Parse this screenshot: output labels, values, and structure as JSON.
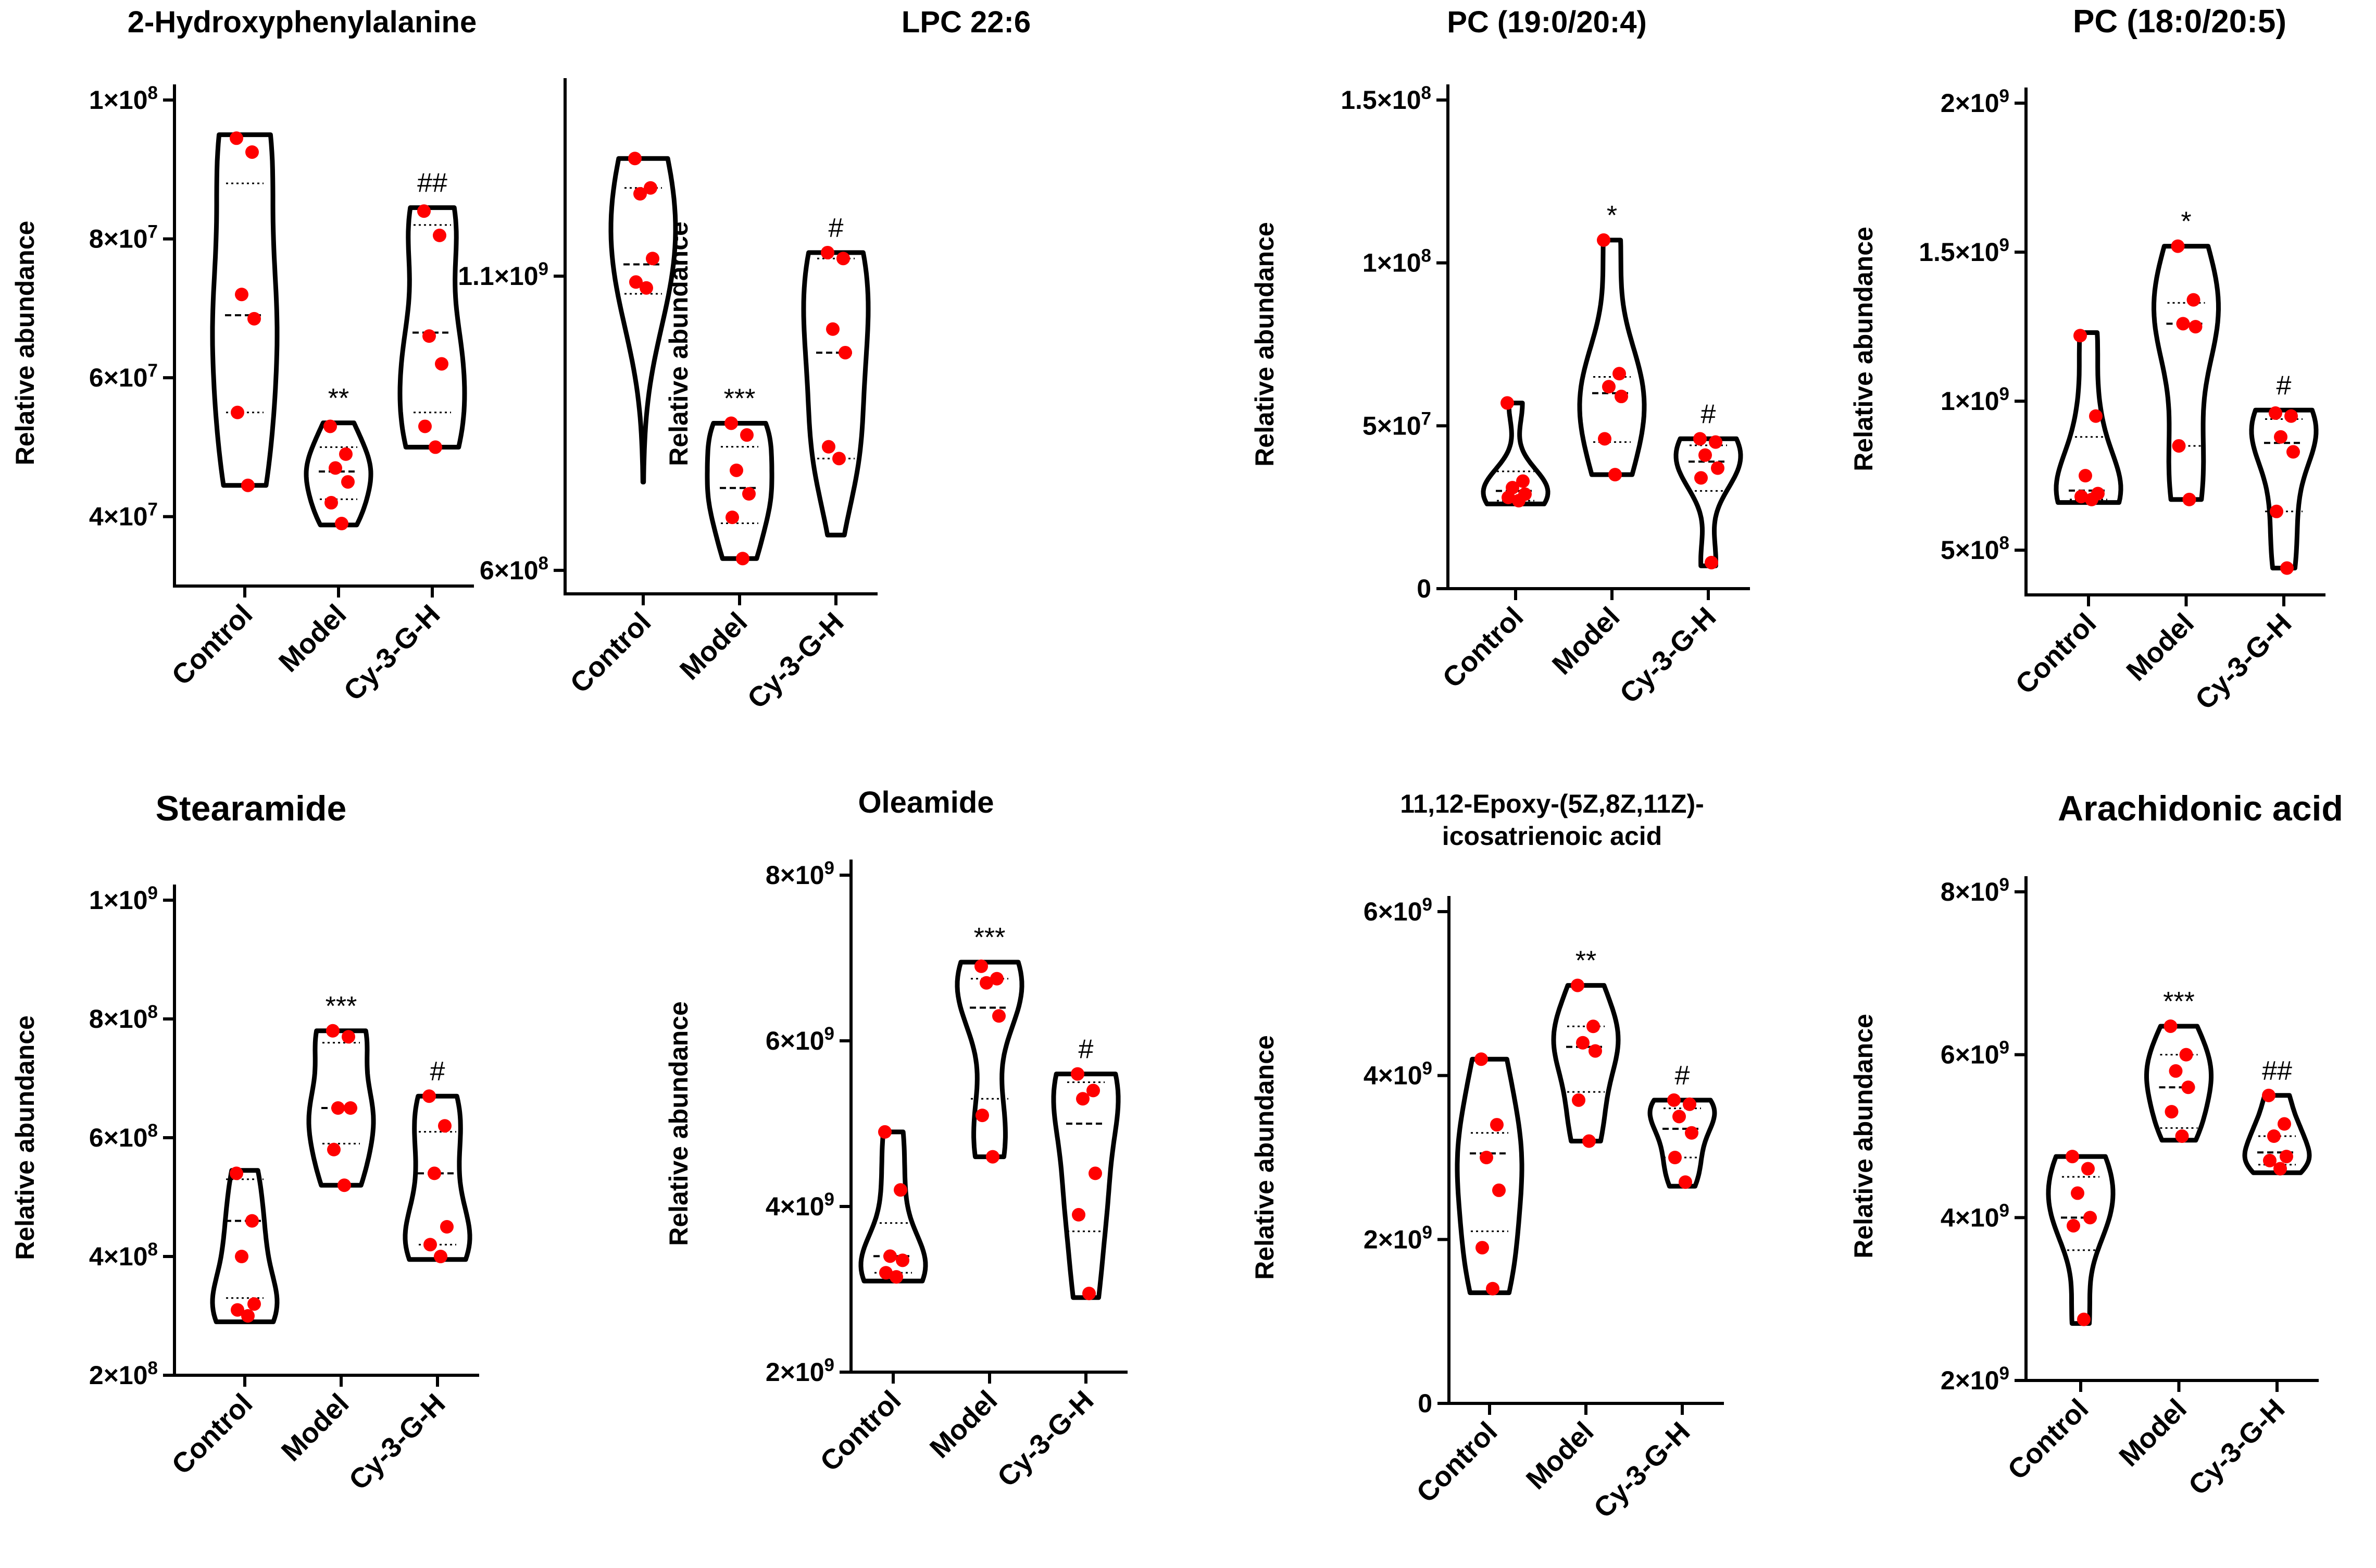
{
  "figure": {
    "background": "#ffffff",
    "point_color": "#ff0000",
    "line_color": "#000000"
  },
  "chart_data": [
    {
      "type": "violin",
      "title": "2-Hydroxyphenylalanine",
      "ylabel": "Relative abundance",
      "categories": [
        "Control",
        "Model",
        "Cy-3-G-H"
      ],
      "ylim": [
        30000000.0,
        100000000.0
      ],
      "yticks": [
        40000000.0,
        60000000.0,
        80000000.0,
        100000000.0
      ],
      "ytick_labels": [
        "4×10⁷",
        "6×10⁷",
        "8×10⁷",
        "1×10⁸"
      ],
      "annotations": [
        "",
        "**",
        "##"
      ],
      "series": [
        {
          "name": "Control",
          "values": [
            94500000.0,
            92500000.0,
            72000000.0,
            68500000.0,
            55000000.0,
            44500000.0
          ],
          "min": 44500000.0,
          "max": 95000000.0,
          "median": 69000000.0,
          "q1": 55000000.0,
          "q3": 88000000.0
        },
        {
          "name": "Model",
          "values": [
            53000000.0,
            49000000.0,
            47000000.0,
            45000000.0,
            42000000.0,
            39000000.0
          ],
          "min": 38800000.0,
          "max": 53500000.0,
          "median": 46500000.0,
          "q1": 42500000.0,
          "q3": 50000000.0
        },
        {
          "name": "Cy-3-G-H",
          "values": [
            84000000.0,
            80500000.0,
            66000000.0,
            62000000.0,
            53000000.0,
            50000000.0
          ],
          "min": 50000000.0,
          "max": 84500000.0,
          "median": 66500000.0,
          "q1": 55000000.0,
          "q3": 82000000.0
        }
      ]
    },
    {
      "type": "violin",
      "title": "LPC 22:6",
      "ylabel": "Relative abundance",
      "categories": [
        "Control",
        "Model",
        "Cy-3-G-H"
      ],
      "ylim": [
        560000000.0,
        1410000000.0
      ],
      "yticks": [
        600000000.0,
        1100000000.0
      ],
      "ytick_labels": [
        "6×10⁸",
        "1.1×10⁹"
      ],
      "annotations": [
        "",
        "***",
        "#"
      ],
      "series": [
        {
          "name": "Control",
          "values": [
            1300000000.0,
            1250000000.0,
            1240000000.0,
            1130000000.0,
            1090000000.0,
            1080000000.0
          ],
          "min": 750000000.0,
          "max": 1300000000.0,
          "median": 1120000000.0,
          "q1": 1070000000.0,
          "q3": 1250000000.0
        },
        {
          "name": "Model",
          "values": [
            850000000.0,
            830000000.0,
            770000000.0,
            730000000.0,
            690000000.0,
            620000000.0
          ],
          "min": 620000000.0,
          "max": 850000000.0,
          "median": 740000000.0,
          "q1": 680000000.0,
          "q3": 810000000.0
        },
        {
          "name": "Cy-3-G-H",
          "values": [
            1140000000.0,
            1130000000.0,
            1010000000.0,
            970000000.0,
            810000000.0,
            790000000.0
          ],
          "min": 660000000.0,
          "max": 1140000000.0,
          "median": 970000000.0,
          "q1": 790000000.0,
          "q3": 1130000000.0
        }
      ]
    },
    {
      "type": "violin",
      "title": "PC (19:0/20:4)",
      "ylabel": "Relative abundance",
      "categories": [
        "Control",
        "Model",
        "Cy-3-G-H"
      ],
      "ylim": [
        0,
        150000000.0
      ],
      "yticks": [
        0,
        50000000.0,
        100000000.0,
        150000000.0
      ],
      "ytick_labels": [
        "0",
        "5×10⁷",
        "1×10⁸",
        "1.5×10⁸"
      ],
      "annotations": [
        "",
        "*",
        "#"
      ],
      "series": [
        {
          "name": "Control",
          "values": [
            57000000.0,
            33000000.0,
            31000000.0,
            29000000.0,
            28000000.0,
            27000000.0
          ],
          "min": 26000000.0,
          "max": 57000000.0,
          "median": 30000000.0,
          "q1": 27000000.0,
          "q3": 36000000.0
        },
        {
          "name": "Model",
          "values": [
            107000000.0,
            66000000.0,
            62000000.0,
            59000000.0,
            46000000.0,
            35000000.0
          ],
          "min": 35000000.0,
          "max": 107000000.0,
          "median": 60000000.0,
          "q1": 45000000.0,
          "q3": 65000000.0
        },
        {
          "name": "Cy-3-G-H",
          "values": [
            46000000.0,
            45000000.0,
            41000000.0,
            37000000.0,
            34000000.0,
            8000000.0
          ],
          "min": 7000000.0,
          "max": 46000000.0,
          "median": 39000000.0,
          "q1": 30000000.0,
          "q3": 44000000.0
        }
      ]
    },
    {
      "type": "violin",
      "title": "PC (18:0/20:5)",
      "ylabel": "Relative abundance",
      "categories": [
        "Control",
        "Model",
        "Cy-3-G-H"
      ],
      "ylim": [
        350000000.0,
        2000000000.0
      ],
      "yticks": [
        500000000.0,
        1000000000.0,
        1500000000.0,
        2000000000.0
      ],
      "ytick_labels": [
        "5×10⁸",
        "1×10⁹",
        "1.5×10⁹",
        "2×10⁹"
      ],
      "annotations": [
        "",
        "*",
        "#"
      ],
      "series": [
        {
          "name": "Control",
          "values": [
            1220000000.0,
            950000000.0,
            750000000.0,
            690000000.0,
            680000000.0,
            670000000.0
          ],
          "min": 660000000.0,
          "max": 1230000000.0,
          "median": 700000000.0,
          "q1": 670000000.0,
          "q3": 880000000.0
        },
        {
          "name": "Model",
          "values": [
            1520000000.0,
            1340000000.0,
            1260000000.0,
            1250000000.0,
            850000000.0,
            670000000.0
          ],
          "min": 670000000.0,
          "max": 1520000000.0,
          "median": 1260000000.0,
          "q1": 850000000.0,
          "q3": 1330000000.0
        },
        {
          "name": "Cy-3-G-H",
          "values": [
            960000000.0,
            950000000.0,
            880000000.0,
            830000000.0,
            630000000.0,
            440000000.0
          ],
          "min": 440000000.0,
          "max": 970000000.0,
          "median": 860000000.0,
          "q1": 630000000.0,
          "q3": 940000000.0
        }
      ]
    },
    {
      "type": "violin",
      "title": "Stearamide",
      "ylabel": "Relative abundance",
      "categories": [
        "Control",
        "Model",
        "Cy-3-G-H"
      ],
      "ylim": [
        200000000.0,
        1000000000.0
      ],
      "yticks": [
        200000000.0,
        400000000.0,
        600000000.0,
        800000000.0,
        1000000000.0
      ],
      "ytick_labels": [
        "2×10⁸",
        "4×10⁸",
        "6×10⁸",
        "8×10⁸",
        "1×10⁹"
      ],
      "annotations": [
        "",
        "***",
        "#"
      ],
      "series": [
        {
          "name": "Control",
          "values": [
            540000000.0,
            460000000.0,
            400000000.0,
            320000000.0,
            310000000.0,
            300000000.0
          ],
          "min": 290000000.0,
          "max": 545000000.0,
          "median": 460000000.0,
          "q1": 330000000.0,
          "q3": 530000000.0
        },
        {
          "name": "Model",
          "values": [
            780000000.0,
            770000000.0,
            650000000.0,
            650000000.0,
            580000000.0,
            520000000.0
          ],
          "min": 520000000.0,
          "max": 780000000.0,
          "median": 650000000.0,
          "q1": 590000000.0,
          "q3": 760000000.0
        },
        {
          "name": "Cy-3-G-H",
          "values": [
            670000000.0,
            620000000.0,
            540000000.0,
            450000000.0,
            420000000.0,
            400000000.0
          ],
          "min": 395000000.0,
          "max": 670000000.0,
          "median": 540000000.0,
          "q1": 420000000.0,
          "q3": 610000000.0
        }
      ]
    },
    {
      "type": "violin",
      "title": "Oleamide",
      "ylabel": "Relative abundance",
      "categories": [
        "Control",
        "Model",
        "Cy-3-G-H"
      ],
      "ylim": [
        2000000000.0,
        8000000000.0
      ],
      "yticks": [
        2000000000.0,
        4000000000.0,
        6000000000.0,
        8000000000.0
      ],
      "ytick_labels": [
        "2×10⁹",
        "4×10⁹",
        "6×10⁹",
        "8×10⁹"
      ],
      "annotations": [
        "",
        "***",
        "#"
      ],
      "series": [
        {
          "name": "Control",
          "values": [
            4900000000.0,
            4200000000.0,
            3400000000.0,
            3350000000.0,
            3200000000.0,
            3150000000.0
          ],
          "min": 3100000000.0,
          "max": 4900000000.0,
          "median": 3400000000.0,
          "q1": 3200000000.0,
          "q3": 3800000000.0
        },
        {
          "name": "Model",
          "values": [
            6900000000.0,
            6750000000.0,
            6700000000.0,
            6300000000.0,
            5100000000.0,
            4600000000.0
          ],
          "min": 4600000000.0,
          "max": 6950000000.0,
          "median": 6400000000.0,
          "q1": 5300000000.0,
          "q3": 6750000000.0
        },
        {
          "name": "Cy-3-G-H",
          "values": [
            5600000000.0,
            5400000000.0,
            5300000000.0,
            4400000000.0,
            3900000000.0,
            2950000000.0
          ],
          "min": 2900000000.0,
          "max": 5600000000.0,
          "median": 5000000000.0,
          "q1": 3700000000.0,
          "q3": 5500000000.0
        }
      ]
    },
    {
      "type": "violin",
      "title": "11,12-Epoxy-(5Z,8Z,11Z)-icosatrienoic acid",
      "title_lines": [
        "11,12-Epoxy-(5Z,8Z,11Z)-",
        "icosatrienoic acid"
      ],
      "ylabel": "Relative abundance",
      "categories": [
        "Control",
        "Model",
        "Cy-3-G-H"
      ],
      "ylim": [
        0,
        6000000000.0
      ],
      "yticks": [
        0,
        2000000000.0,
        4000000000.0,
        6000000000.0
      ],
      "ytick_labels": [
        "0",
        "2×10⁹",
        "4×10⁹",
        "6×10⁹"
      ],
      "annotations": [
        "",
        "**",
        "#"
      ],
      "series": [
        {
          "name": "Control",
          "values": [
            4200000000.0,
            3400000000.0,
            3000000000.0,
            2600000000.0,
            1900000000.0,
            1400000000.0
          ],
          "min": 1350000000.0,
          "max": 4200000000.0,
          "median": 3050000000.0,
          "q1": 2100000000.0,
          "q3": 3300000000.0
        },
        {
          "name": "Model",
          "values": [
            5100000000.0,
            4600000000.0,
            4400000000.0,
            4300000000.0,
            3700000000.0,
            3200000000.0
          ],
          "min": 3200000000.0,
          "max": 5100000000.0,
          "median": 4350000000.0,
          "q1": 3800000000.0,
          "q3": 4600000000.0
        },
        {
          "name": "Cy-3-G-H",
          "values": [
            3700000000.0,
            3650000000.0,
            3500000000.0,
            3300000000.0,
            3000000000.0,
            2700000000.0
          ],
          "min": 2650000000.0,
          "max": 3700000000.0,
          "median": 3350000000.0,
          "q1": 3000000000.0,
          "q3": 3600000000.0
        }
      ]
    },
    {
      "type": "violin",
      "title": "Arachidonic acid",
      "ylabel": "Relative abundance",
      "categories": [
        "Control",
        "Model",
        "Cy-3-G-H"
      ],
      "ylim": [
        2000000000.0,
        8000000000.0
      ],
      "yticks": [
        2000000000.0,
        4000000000.0,
        6000000000.0,
        8000000000.0
      ],
      "ytick_labels": [
        "2×10⁹",
        "4×10⁹",
        "6×10⁹",
        "8×10⁹"
      ],
      "annotations": [
        "",
        "***",
        "##"
      ],
      "series": [
        {
          "name": "Control",
          "values": [
            4750000000.0,
            4600000000.0,
            4300000000.0,
            4000000000.0,
            3900000000.0,
            2750000000.0
          ],
          "min": 2700000000.0,
          "max": 4750000000.0,
          "median": 4000000000.0,
          "q1": 3600000000.0,
          "q3": 4500000000.0
        },
        {
          "name": "Model",
          "values": [
            6350000000.0,
            6000000000.0,
            5800000000.0,
            5600000000.0,
            5300000000.0,
            5000000000.0
          ],
          "min": 4950000000.0,
          "max": 6350000000.0,
          "median": 5600000000.0,
          "q1": 5100000000.0,
          "q3": 6000000000.0
        },
        {
          "name": "Cy-3-G-H",
          "values": [
            5500000000.0,
            5150000000.0,
            5000000000.0,
            4750000000.0,
            4700000000.0,
            4600000000.0
          ],
          "min": 4550000000.0,
          "max": 5500000000.0,
          "median": 4800000000.0,
          "q1": 4650000000.0,
          "q3": 5000000000.0
        }
      ]
    }
  ]
}
